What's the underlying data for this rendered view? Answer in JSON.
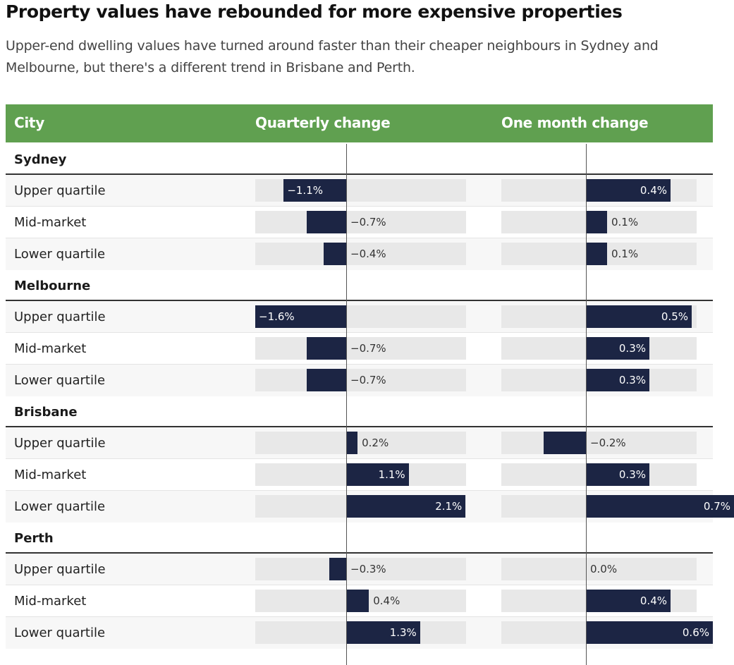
{
  "title": "Property values have rebounded for more expensive properties",
  "subtitle": "Upper-end dwelling values have turned around faster than their cheaper neighbours in Sydney and Melbourne, but there's a different trend in Brisbane and Perth.",
  "colors": {
    "header": "#60a050",
    "bar": "#1c2544",
    "track": "#e8e8e8"
  },
  "chart_data": {
    "type": "table",
    "columns": [
      "City",
      "Quarterly change",
      "One month change"
    ],
    "quarterly_range": [
      -1.6,
      2.1
    ],
    "monthly_range": [
      -0.4,
      1.2
    ],
    "groups": [
      {
        "city": "Sydney",
        "rows": [
          {
            "label": "Upper quartile",
            "quarterly": -1.1,
            "quarterly_label": "−1.1%",
            "monthly": 0.4,
            "monthly_label": "0.4%"
          },
          {
            "label": "Mid-market",
            "quarterly": -0.7,
            "quarterly_label": "−0.7%",
            "monthly": 0.1,
            "monthly_label": "0.1%"
          },
          {
            "label": "Lower quartile",
            "quarterly": -0.4,
            "quarterly_label": "−0.4%",
            "monthly": 0.1,
            "monthly_label": "0.1%"
          }
        ]
      },
      {
        "city": "Melbourne",
        "rows": [
          {
            "label": "Upper quartile",
            "quarterly": -1.6,
            "quarterly_label": "−1.6%",
            "monthly": 0.5,
            "monthly_label": "0.5%"
          },
          {
            "label": "Mid-market",
            "quarterly": -0.7,
            "quarterly_label": "−0.7%",
            "monthly": 0.3,
            "monthly_label": "0.3%"
          },
          {
            "label": "Lower quartile",
            "quarterly": -0.7,
            "quarterly_label": "−0.7%",
            "monthly": 0.3,
            "monthly_label": "0.3%"
          }
        ]
      },
      {
        "city": "Brisbane",
        "rows": [
          {
            "label": "Upper quartile",
            "quarterly": 0.2,
            "quarterly_label": "0.2%",
            "monthly": -0.2,
            "monthly_label": "−0.2%"
          },
          {
            "label": "Mid-market",
            "quarterly": 1.1,
            "quarterly_label": "1.1%",
            "monthly": 0.3,
            "monthly_label": "0.3%"
          },
          {
            "label": "Lower quartile",
            "quarterly": 2.1,
            "quarterly_label": "2.1%",
            "monthly": 0.7,
            "monthly_label": "0.7%"
          }
        ]
      },
      {
        "city": "Perth",
        "rows": [
          {
            "label": "Upper quartile",
            "quarterly": -0.3,
            "quarterly_label": "−0.3%",
            "monthly": 0.0,
            "monthly_label": "0.0%"
          },
          {
            "label": "Mid-market",
            "quarterly": 0.4,
            "quarterly_label": "0.4%",
            "monthly": 0.4,
            "monthly_label": "0.4%"
          },
          {
            "label": "Lower quartile",
            "quarterly": 1.3,
            "quarterly_label": "1.3%",
            "monthly": 0.6,
            "monthly_label": "0.6%"
          }
        ]
      }
    ]
  }
}
